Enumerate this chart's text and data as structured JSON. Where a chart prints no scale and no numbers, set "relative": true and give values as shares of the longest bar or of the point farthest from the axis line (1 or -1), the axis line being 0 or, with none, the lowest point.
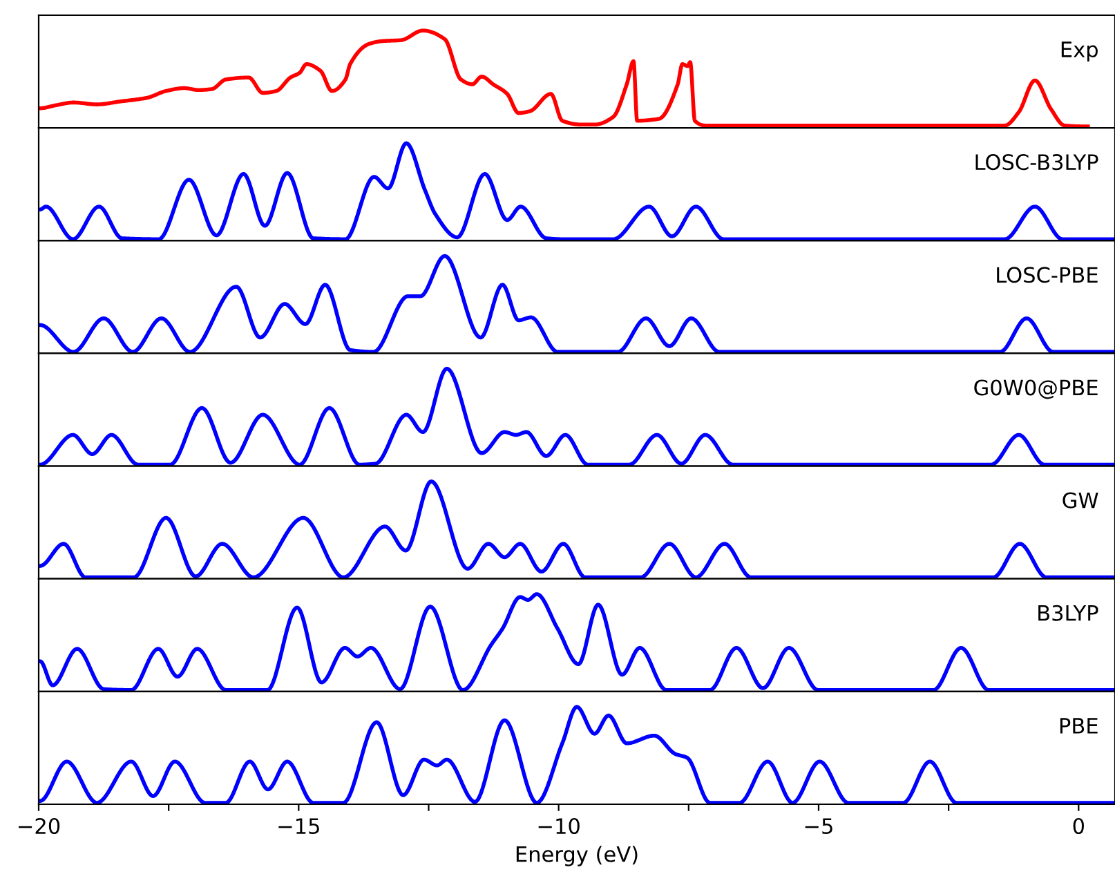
{
  "chart_data": [
    {
      "type": "line",
      "relative": true,
      "xlim": [
        -20,
        0.7
      ],
      "tick_labels": false,
      "series": [
        {
          "name": "Exp",
          "color": "#ff0000",
          "x": [
            -19.97,
            -19.68,
            -19.33,
            -18.88,
            -18.44,
            -17.91,
            -17.55,
            -17.2,
            -16.93,
            -16.67,
            -16.4,
            -15.96,
            -15.69,
            -15.43,
            -15.16,
            -14.98,
            -14.85,
            -14.58,
            -14.36,
            -14.1,
            -14.01,
            -13.65,
            -13.39,
            -13.03,
            -12.61,
            -12.19,
            -11.88,
            -11.66,
            -11.48,
            -11.26,
            -10.99,
            -10.77,
            -10.55,
            -10.15,
            -9.93,
            -9.57,
            -9.31,
            -8.95,
            -8.69,
            -8.56,
            -8.49,
            -8.07,
            -7.71,
            -7.62,
            -7.52,
            -7.47,
            -7.38,
            -7.18,
            -1.42,
            -1.15,
            -0.84,
            -0.53,
            -0.27,
            0.18
          ],
          "values": [
            0.19,
            0.22,
            0.25,
            0.23,
            0.26,
            0.3,
            0.37,
            0.4,
            0.38,
            0.39,
            0.49,
            0.51,
            0.35,
            0.37,
            0.51,
            0.56,
            0.65,
            0.58,
            0.37,
            0.49,
            0.65,
            0.86,
            0.89,
            0.9,
            1.0,
            0.91,
            0.49,
            0.44,
            0.52,
            0.44,
            0.34,
            0.14,
            0.16,
            0.34,
            0.06,
            0.02,
            0.02,
            0.1,
            0.44,
            0.68,
            0.06,
            0.08,
            0.44,
            0.65,
            0.63,
            0.67,
            0.06,
            0.01,
            0.01,
            0.15,
            0.48,
            0.18,
            0.01,
            0.0
          ]
        }
      ]
    },
    {
      "type": "line",
      "relative": true,
      "xlim": [
        -20,
        0.7
      ],
      "tick_labels": false,
      "series": [
        {
          "name": "LOSC-B3LYP",
          "color": "#0000ff",
          "x": [
            -19.97,
            -19.86,
            -19.34,
            -18.84,
            -18.4,
            -17.69,
            -17.11,
            -16.58,
            -16.06,
            -15.65,
            -15.22,
            -14.72,
            -14.1,
            -13.55,
            -13.28,
            -12.93,
            -12.57,
            -12.37,
            -11.95,
            -11.42,
            -10.99,
            -10.73,
            -10.24,
            -9.93,
            -8.95,
            -8.26,
            -7.82,
            -7.36,
            -6.83,
            -1.42,
            -0.84,
            -0.31,
            0.7
          ],
          "values": [
            0.31,
            0.34,
            0,
            0.34,
            0.01,
            0,
            0.62,
            0.04,
            0.68,
            0.14,
            0.69,
            0.01,
            0,
            0.65,
            0.53,
            1.0,
            0.51,
            0.26,
            0.02,
            0.68,
            0.2,
            0.34,
            0.01,
            0,
            0,
            0.34,
            0.03,
            0.34,
            0,
            0,
            0.34,
            0,
            0
          ]
        }
      ]
    },
    {
      "type": "line",
      "relative": true,
      "xlim": [
        -20,
        0.7
      ],
      "tick_labels": false,
      "series": [
        {
          "name": "LOSC-PBE",
          "color": "#0000ff",
          "x": [
            -19.97,
            -19.33,
            -18.75,
            -18.19,
            -17.64,
            -17.09,
            -16.2,
            -15.74,
            -15.27,
            -14.87,
            -14.49,
            -14.01,
            -13.56,
            -12.9,
            -12.66,
            -12.19,
            -11.5,
            -11.08,
            -10.77,
            -10.53,
            -10.02,
            -8.86,
            -8.32,
            -7.87,
            -7.45,
            -6.91,
            -1.51,
            -1.0,
            -0.49,
            0.7
          ],
          "values": [
            0.28,
            0,
            0.35,
            0,
            0.35,
            0,
            0.68,
            0.15,
            0.5,
            0.29,
            0.7,
            0.02,
            0,
            0.58,
            0.58,
            1.0,
            0.15,
            0.7,
            0.33,
            0.36,
            0,
            0,
            0.35,
            0.06,
            0.35,
            0,
            0,
            0.35,
            0,
            0
          ]
        }
      ]
    },
    {
      "type": "line",
      "relative": true,
      "xlim": [
        -20,
        0.7
      ],
      "tick_labels": false,
      "series": [
        {
          "name": "G0W0@PBE",
          "color": "#0000ff",
          "x": [
            -19.97,
            -19.34,
            -18.97,
            -18.6,
            -18.09,
            -17.47,
            -16.86,
            -16.31,
            -15.69,
            -14.98,
            -14.41,
            -13.83,
            -13.52,
            -12.93,
            -12.61,
            -12.15,
            -11.48,
            -11.04,
            -10.82,
            -10.62,
            -10.24,
            -9.87,
            -9.44,
            -8.64,
            -8.11,
            -7.64,
            -7.18,
            -6.65,
            -1.68,
            -1.15,
            -0.66,
            0.7
          ],
          "values": [
            0,
            0.31,
            0.11,
            0.31,
            0,
            0,
            0.59,
            0.02,
            0.52,
            0,
            0.59,
            0,
            0.01,
            0.52,
            0.34,
            1.0,
            0.12,
            0.34,
            0.31,
            0.34,
            0.09,
            0.31,
            0,
            0,
            0.31,
            0.01,
            0.31,
            0,
            0,
            0.31,
            0,
            0
          ]
        }
      ]
    },
    {
      "type": "line",
      "relative": true,
      "xlim": [
        -20,
        0.7
      ],
      "tick_labels": false,
      "series": [
        {
          "name": "GW",
          "color": "#0000ff",
          "x": [
            -19.97,
            -19.52,
            -19.1,
            -18.17,
            -17.55,
            -16.98,
            -16.47,
            -15.87,
            -14.91,
            -14.14,
            -13.34,
            -12.94,
            -12.45,
            -11.75,
            -11.35,
            -11.04,
            -10.74,
            -10.33,
            -9.91,
            -9.49,
            -8.42,
            -7.87,
            -7.36,
            -6.81,
            -6.3,
            -1.64,
            -1.13,
            -0.62,
            0.7
          ],
          "values": [
            0.12,
            0.35,
            0,
            0,
            0.62,
            0.01,
            0.35,
            0,
            0.62,
            0,
            0.53,
            0.28,
            1.0,
            0.09,
            0.35,
            0.21,
            0.35,
            0.06,
            0.35,
            0,
            0,
            0.35,
            0,
            0.35,
            0,
            0,
            0.35,
            0,
            0
          ]
        }
      ]
    },
    {
      "type": "line",
      "relative": true,
      "xlim": [
        -20,
        0.7
      ],
      "tick_labels": false,
      "series": [
        {
          "name": "B3LYP",
          "color": "#0000ff",
          "x": [
            -19.97,
            -19.73,
            -19.26,
            -18.75,
            -18.22,
            -17.7,
            -17.33,
            -16.95,
            -16.4,
            -15.6,
            -15.03,
            -14.56,
            -14.11,
            -13.87,
            -13.61,
            -13.05,
            -12.47,
            -11.84,
            -11.3,
            -11.08,
            -10.74,
            -10.59,
            -10.42,
            -10.02,
            -9.62,
            -9.24,
            -8.78,
            -8.44,
            -7.93,
            -7.09,
            -6.58,
            -6.07,
            -5.57,
            -5.01,
            -2.79,
            -2.26,
            -1.73,
            0.7
          ],
          "values": [
            0.3,
            0.05,
            0.43,
            0.01,
            0,
            0.43,
            0.14,
            0.43,
            0,
            0,
            0.86,
            0.08,
            0.44,
            0.35,
            0.44,
            0.01,
            0.87,
            0,
            0.47,
            0.64,
            0.97,
            0.94,
            1.0,
            0.64,
            0.27,
            0.89,
            0.16,
            0.44,
            0,
            0,
            0.44,
            0.02,
            0.44,
            0,
            0,
            0.44,
            0,
            0
          ]
        }
      ]
    },
    {
      "type": "line",
      "relative": true,
      "xlim": [
        -20,
        0.7
      ],
      "xticks": [
        -20,
        {
          "value": -17.5,
          "label": null
        },
        -15,
        {
          "value": -12.5,
          "label": null
        },
        -10,
        {
          "value": -7.5,
          "label": null
        },
        -5,
        {
          "value": -2.5,
          "label": null
        },
        0
      ],
      "tick_labels": "x",
      "xlabel": "Energy (eV)",
      "series": [
        {
          "name": "PBE",
          "color": "#0000ff",
          "x": [
            -19.97,
            -19.46,
            -18.88,
            -18.22,
            -17.8,
            -17.38,
            -16.8,
            -16.4,
            -15.94,
            -15.59,
            -15.22,
            -14.72,
            -14.14,
            -13.5,
            -12.99,
            -12.59,
            -12.34,
            -12.15,
            -11.61,
            -11.04,
            -10.42,
            -9.93,
            -9.65,
            -9.31,
            -9.04,
            -8.69,
            -8.16,
            -7.76,
            -7.53,
            -7.09,
            -6.52,
            -5.98,
            -5.5,
            -4.98,
            -4.43,
            -3.37,
            -2.86,
            -2.35,
            0.7
          ],
          "values": [
            0.02,
            0.43,
            0,
            0.43,
            0.07,
            0.43,
            0,
            0,
            0.43,
            0.14,
            0.43,
            0,
            0,
            0.84,
            0.08,
            0.45,
            0.39,
            0.45,
            0.01,
            0.86,
            0,
            0.62,
            1.0,
            0.72,
            0.91,
            0.62,
            0.7,
            0.51,
            0.47,
            0,
            0,
            0.43,
            0,
            0.43,
            0,
            0,
            0.43,
            0,
            0
          ]
        }
      ]
    }
  ]
}
